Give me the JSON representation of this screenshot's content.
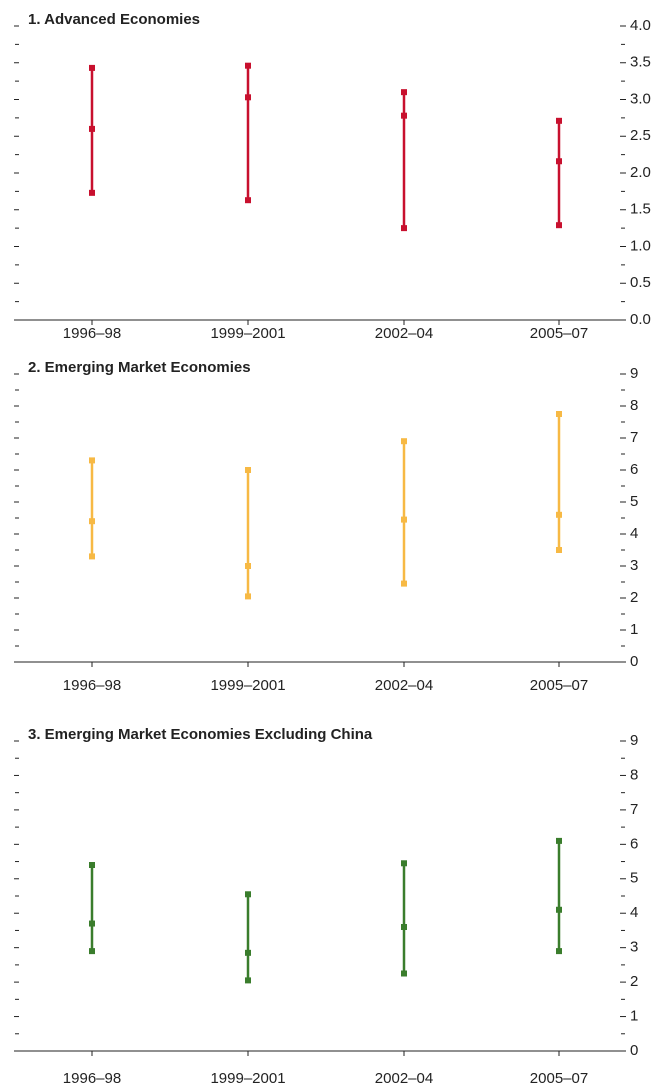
{
  "chart_data": [
    {
      "type": "range",
      "title": "1. Advanced Economies",
      "color": "#c8102e",
      "categories": [
        "1996–98",
        "1999–2001",
        "2002–04",
        "2005–07"
      ],
      "series": [
        {
          "values": [
            1.73,
            1.63,
            1.25,
            1.29
          ]
        },
        {
          "values": [
            2.6,
            3.03,
            2.78,
            2.16
          ]
        },
        {
          "values": [
            3.43,
            3.46,
            3.1,
            2.71
          ]
        }
      ],
      "ylim": [
        0,
        4
      ],
      "yticks": [
        {
          "value": 0,
          "label": "0.0"
        },
        0.5,
        {
          "value": 1,
          "label": "1.0"
        },
        1.5,
        {
          "value": 2,
          "label": "2.0"
        },
        2.5,
        {
          "value": 3,
          "label": "3.0"
        },
        3.5,
        {
          "value": 4,
          "label": "4.0"
        }
      ]
    },
    {
      "type": "range",
      "title": "2. Emerging Market Economies",
      "color": "#f7b944",
      "categories": [
        "1996–98",
        "1999–2001",
        "2002–04",
        "2005–07"
      ],
      "series": [
        {
          "values": [
            3.3,
            2.05,
            2.45,
            3.5
          ]
        },
        {
          "values": [
            4.4,
            3.0,
            4.45,
            4.6
          ]
        },
        {
          "values": [
            6.3,
            6.0,
            6.9,
            7.75
          ]
        }
      ],
      "ylim": [
        0,
        9
      ],
      "yticks": [
        0,
        1,
        2,
        3,
        4,
        5,
        6,
        7,
        8,
        9
      ]
    },
    {
      "type": "range",
      "title": "3. Emerging Market Economies Excluding China",
      "color": "#3a7d2c",
      "categories": [
        "1996–98",
        "1999–2001",
        "2002–04",
        "2005–07"
      ],
      "series": [
        {
          "values": [
            2.9,
            2.05,
            2.25,
            2.9
          ]
        },
        {
          "values": [
            3.7,
            2.85,
            3.6,
            4.1
          ]
        },
        {
          "values": [
            5.4,
            4.55,
            5.45,
            6.1
          ]
        }
      ],
      "ylim": [
        0,
        9
      ],
      "yticks": [
        0,
        1,
        2,
        3,
        4,
        5,
        6,
        7,
        8,
        9
      ]
    }
  ]
}
